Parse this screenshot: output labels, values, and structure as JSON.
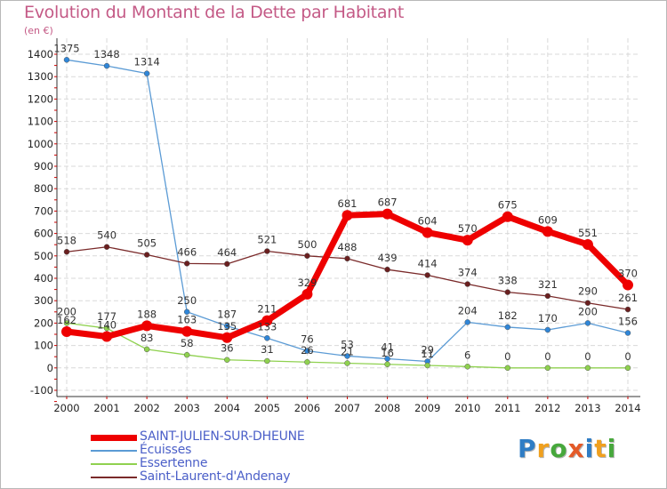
{
  "title": "Evolution du Montant de la Dette par Habitant",
  "subtitle": "(en €)",
  "logo": {
    "text": "Proxiti",
    "colors": [
      "#2f7dc5",
      "#f0a01e",
      "#47a83c",
      "#e45a28",
      "#2f7dc5",
      "#f0a01e",
      "#47a83c"
    ]
  },
  "chart_data": {
    "type": "line",
    "title": "Evolution du Montant de la Dette par Habitant",
    "subtitle": "(en €)",
    "x": [
      "2000",
      "2001",
      "2002",
      "2003",
      "2004",
      "2005",
      "2006",
      "2007",
      "2008",
      "2009",
      "2010",
      "2011",
      "2012",
      "2013",
      "2014"
    ],
    "ylim": [
      -100,
      1400
    ],
    "yticks": [
      -100,
      0,
      100,
      200,
      300,
      400,
      500,
      600,
      700,
      800,
      900,
      1000,
      1100,
      1200,
      1300,
      1400
    ],
    "grid": true,
    "legend": "bottom-left",
    "series": [
      {
        "name": "SAINT-JULIEN-SUR-DHEUNE",
        "color": "#ee0000",
        "values": [
          162,
          140,
          188,
          163,
          135,
          211,
          329,
          681,
          687,
          604,
          570,
          675,
          609,
          551,
          370
        ]
      },
      {
        "name": "Écuisses",
        "color": "#5b9bd5",
        "values": [
          1375,
          1348,
          1314,
          250,
          187,
          133,
          76,
          53,
          41,
          29,
          204,
          182,
          170,
          200,
          156
        ]
      },
      {
        "name": "Essertenne",
        "color": "#8fd14f",
        "values": [
          200,
          177,
          83,
          58,
          36,
          31,
          26,
          21,
          16,
          11,
          6,
          0,
          0,
          0,
          0
        ]
      },
      {
        "name": "Saint-Laurent-d'Andenay",
        "color": "#7a2a2a",
        "values": [
          518,
          540,
          505,
          466,
          464,
          521,
          500,
          488,
          439,
          414,
          374,
          338,
          321,
          290,
          261
        ]
      }
    ]
  }
}
